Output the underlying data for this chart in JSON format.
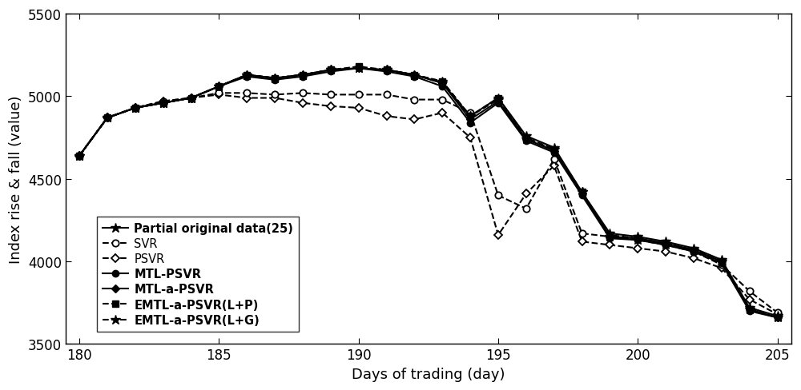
{
  "x": [
    180,
    181,
    182,
    183,
    184,
    185,
    186,
    187,
    188,
    189,
    190,
    191,
    192,
    193,
    194,
    195,
    196,
    197,
    198,
    199,
    200,
    201,
    202,
    203,
    204,
    205
  ],
  "original": [
    4640,
    4870,
    4930,
    4960,
    4990,
    5060,
    5130,
    5110,
    5130,
    5160,
    5170,
    5160,
    5130,
    5080,
    4880,
    4990,
    4760,
    4690,
    4420,
    4170,
    4150,
    4120,
    4080,
    4010,
    3720,
    3670
  ],
  "SVR": [
    4640,
    4870,
    4930,
    4970,
    4990,
    5020,
    5020,
    5010,
    5020,
    5010,
    5010,
    5010,
    4980,
    4980,
    4900,
    4400,
    4320,
    4620,
    4170,
    4150,
    4140,
    4100,
    4060,
    3980,
    3820,
    3690
  ],
  "PSVR": [
    4640,
    4870,
    4930,
    4970,
    4990,
    5010,
    4990,
    4990,
    4960,
    4940,
    4930,
    4880,
    4860,
    4900,
    4750,
    4160,
    4410,
    4580,
    4120,
    4100,
    4080,
    4060,
    4020,
    3960,
    3770,
    3680
  ],
  "MTL_PSVR": [
    4640,
    4870,
    4930,
    4960,
    4990,
    5060,
    5120,
    5100,
    5120,
    5150,
    5170,
    5150,
    5120,
    5060,
    4840,
    4960,
    4730,
    4660,
    4400,
    4140,
    4130,
    4100,
    4060,
    3990,
    3700,
    3660
  ],
  "MTL_a_PSVR": [
    4640,
    4870,
    4930,
    4960,
    4990,
    5060,
    5130,
    5110,
    5130,
    5160,
    5170,
    5160,
    5130,
    5080,
    4860,
    4970,
    4740,
    4670,
    4410,
    4150,
    4140,
    4110,
    4070,
    4000,
    3710,
    3660
  ],
  "EMTL_LP": [
    4640,
    4870,
    4930,
    4960,
    4990,
    5060,
    5130,
    5110,
    5130,
    5160,
    5180,
    5160,
    5130,
    5090,
    4880,
    4990,
    4750,
    4680,
    4420,
    4160,
    4140,
    4110,
    4070,
    4000,
    3710,
    3660
  ],
  "EMTL_LG": [
    4640,
    4870,
    4930,
    4960,
    4990,
    5060,
    5130,
    5110,
    5130,
    5160,
    5170,
    5160,
    5130,
    5090,
    4880,
    4980,
    4740,
    4680,
    4420,
    4150,
    4130,
    4100,
    4070,
    4000,
    3710,
    3660
  ],
  "xlabel": "Days of trading (day)",
  "ylabel": "Index rise & fall (value)",
  "xlim": [
    179.5,
    205.5
  ],
  "ylim": [
    3500,
    5500
  ],
  "xticks": [
    180,
    185,
    190,
    195,
    200,
    205
  ],
  "yticks": [
    3500,
    4000,
    4500,
    5000,
    5500
  ],
  "legend_labels": [
    "Partial original data(25)",
    "SVR",
    "PSVR",
    "MTL-PSVR",
    "MTL-a-PSVR",
    "EMTL-a-PSVR(L+P)",
    "EMTL-a-PSVR(L+G)"
  ],
  "label_fontsize": 13,
  "tick_fontsize": 12,
  "legend_fontsize": 10.5
}
